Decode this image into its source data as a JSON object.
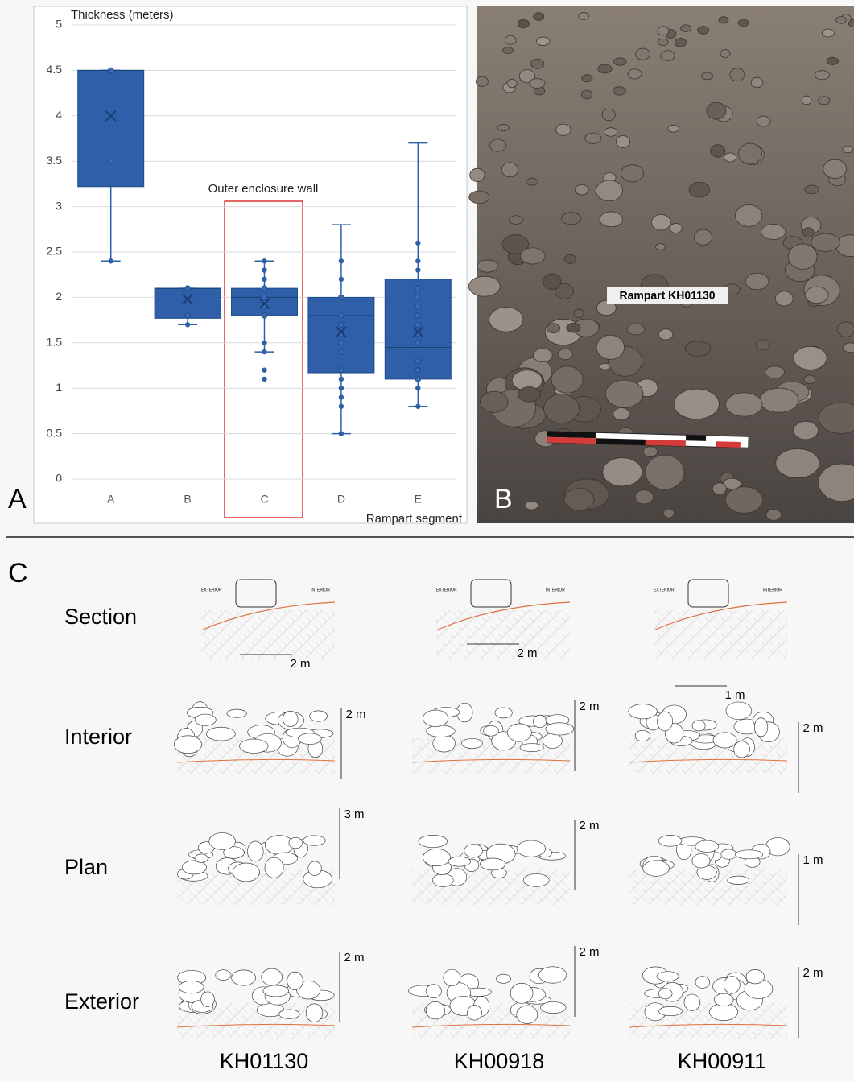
{
  "chart_data": {
    "type": "box",
    "y_label": "Thickness (meters)",
    "x_label": "Rampart segment",
    "annotation": "Outer enclosure wall",
    "categories": [
      "A",
      "B",
      "C",
      "D",
      "E"
    ],
    "color": "#2e5fa8",
    "grid": true,
    "ylim": [
      0,
      5
    ],
    "yticks": [
      0,
      0.5,
      1,
      1.5,
      2,
      2.5,
      3,
      3.5,
      4,
      4.5,
      5
    ],
    "boxes": [
      {
        "min": 2.4,
        "q1": 3.22,
        "median": 4.5,
        "q3": 4.5,
        "max": 4.5,
        "mean": 4.0,
        "points": [
          4.5,
          3.5,
          2.4
        ]
      },
      {
        "min": 1.7,
        "q1": 1.77,
        "median": 2.1,
        "q3": 2.1,
        "max": 2.1,
        "mean": 1.98,
        "points": [
          2.1,
          1.8,
          1.7
        ]
      },
      {
        "min": 1.4,
        "q1": 1.8,
        "median": 2.0,
        "q3": 2.1,
        "max": 2.4,
        "mean": 1.93,
        "points": [
          2.4,
          2.3,
          2.2,
          2.1,
          2.0,
          1.9,
          1.8,
          1.5,
          1.4,
          1.2,
          1.1
        ]
      },
      {
        "min": 0.5,
        "q1": 1.17,
        "median": 1.8,
        "q3": 2.0,
        "max": 2.8,
        "mean": 1.62,
        "points": [
          2.4,
          2.2,
          2.0,
          1.8,
          1.7,
          1.6,
          1.5,
          1.4,
          1.2,
          1.1,
          1.0,
          0.9,
          0.8,
          0.5
        ]
      },
      {
        "min": 0.8,
        "q1": 1.1,
        "median": 1.45,
        "q3": 2.2,
        "max": 3.7,
        "mean": 1.62,
        "points": [
          2.6,
          2.4,
          2.3,
          2.1,
          2.0,
          1.9,
          1.8,
          1.7,
          1.6,
          1.5,
          1.3,
          1.2,
          1.1,
          1.0,
          0.8
        ]
      }
    ]
  },
  "panels": {
    "a": "A",
    "b": "B",
    "c": "C"
  },
  "photo": {
    "label": "Rampart KH01130"
  },
  "drawings": {
    "rows": [
      "Section",
      "Interior",
      "Plan",
      "Exterior"
    ],
    "columns": [
      "KH01130",
      "KH00918",
      "KH00911"
    ],
    "section_labels": [
      "EXTERIOR",
      "INTERIOR"
    ],
    "scales": [
      [
        "2 m",
        "2 m",
        "1 m"
      ],
      [
        "2 m",
        "2 m",
        "2 m"
      ],
      [
        "3 m",
        "2 m",
        "1 m"
      ],
      [
        "2 m",
        "2 m",
        "2 m"
      ]
    ]
  }
}
